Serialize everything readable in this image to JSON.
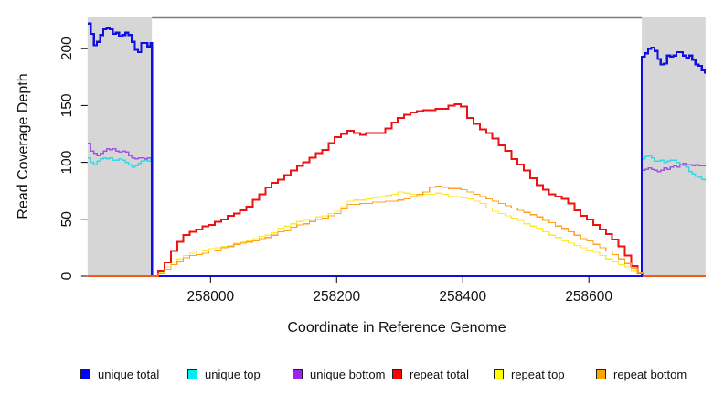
{
  "figure": {
    "background": "#ffffff",
    "plot_background": "#ffffff"
  },
  "chart_data": {
    "type": "line",
    "title": "",
    "xlabel": "Coordinate in Reference Genome",
    "ylabel": "Read Coverage Depth",
    "x_ticks": [
      258000,
      258200,
      258400,
      258600
    ],
    "y_ticks": [
      0,
      50,
      100,
      150,
      200
    ],
    "x_range": [
      257805,
      258785
    ],
    "y_range": [
      0,
      227.5
    ],
    "grid": false,
    "legend_position": "bottom-horizontal",
    "shaded_color": "#d6d6d6",
    "shaded_regions": [
      {
        "from": 257805,
        "to": 257907
      },
      {
        "from": 258684,
        "to": 258785
      }
    ],
    "top_boundary_line": {
      "from": 257907,
      "to": 258684,
      "color": "#7f7f7f"
    },
    "series": [
      {
        "name": "unique top",
        "color": "#38d7e8",
        "line_width": 1.5,
        "segments": [
          {
            "x0": 257805,
            "dx": 5,
            "v": [
              104,
              100,
              98,
              101,
              103,
              104,
              103,
              104,
              102,
              102,
              103,
              102,
              100,
              98,
              96,
              97,
              99,
              101,
              102,
              101,
              103
            ]
          },
          {
            "x0": 257907,
            "dx": 777,
            "v": [
              0,
              0
            ]
          },
          {
            "x0": 258684,
            "dx": 5,
            "v": [
              103,
              105,
              106,
              104,
              101,
              101,
              102,
              100,
              101,
              102,
              102,
              100,
              98,
              97,
              96,
              92,
              90,
              88,
              87,
              85,
              84
            ]
          }
        ]
      },
      {
        "name": "unique bottom",
        "color": "#a055e0",
        "line_width": 1.5,
        "segments": [
          {
            "x0": 257805,
            "dx": 5,
            "v": [
              117,
              110,
              108,
              106,
              108,
              110,
              112,
              111,
              112,
              110,
              109,
              110,
              109,
              106,
              104,
              103,
              104,
              104,
              103,
              104,
              104
            ]
          },
          {
            "x0": 257907,
            "dx": 777,
            "v": [
              0,
              0
            ]
          },
          {
            "x0": 258684,
            "dx": 5,
            "v": [
              93,
              94,
              95,
              94,
              93,
              92,
              93,
              95,
              94,
              96,
              97,
              96,
              98,
              99,
              98,
              98,
              97,
              98,
              97,
              97,
              98
            ]
          }
        ]
      },
      {
        "name": "unique total",
        "color": "#0f0fdf",
        "line_width": 2.2,
        "segments": [
          {
            "x0": 257805,
            "dx": 5,
            "v": [
              222,
              213,
              203,
              206,
              212,
              217,
              218,
              217,
              213,
              214,
              211,
              212,
              214,
              212,
              206,
              199,
              197,
              205,
              205,
              202,
              205
            ]
          },
          {
            "x0": 257907,
            "dx": 777,
            "v": [
              0,
              0
            ]
          },
          {
            "x0": 258684,
            "dx": 5,
            "v": [
              193,
              196,
              200,
              201,
              198,
              191,
              186,
              187,
              194,
              193,
              194,
              197,
              197,
              194,
              192,
              194,
              190,
              186,
              185,
              181,
              178
            ]
          }
        ]
      },
      {
        "name": "repeat top",
        "color": "#ffe930",
        "line_width": 1.2,
        "segments": [
          {
            "x0": 257805,
            "dx": 102,
            "v": [
              0,
              0
            ]
          },
          {
            "x0": 257907,
            "dx": 10,
            "v": [
              0,
              3,
              8,
              12,
              15,
              18,
              20,
              22,
              23,
              24,
              25,
              26,
              27,
              29,
              30,
              31,
              33,
              35,
              36,
              38,
              42,
              44,
              46,
              48,
              49,
              50,
              52,
              53,
              55,
              57,
              61,
              66,
              67,
              67,
              68,
              69,
              70,
              71,
              72,
              74,
              73,
              72,
              71,
              72,
              72,
              73,
              72,
              70,
              70,
              69,
              68,
              66,
              64,
              60,
              57,
              55,
              53,
              51,
              49,
              46,
              44,
              42,
              39,
              36,
              34,
              31,
              29,
              27,
              25,
              23,
              21,
              18,
              15,
              13,
              10,
              8,
              5,
              2,
              0
            ]
          },
          {
            "x0": 258687,
            "dx": 98,
            "v": [
              0,
              0
            ]
          }
        ]
      },
      {
        "name": "repeat total",
        "color": "#ee1212",
        "line_width": 2.0,
        "segments": [
          {
            "x0": 257805,
            "dx": 102,
            "v": [
              0,
              0
            ]
          },
          {
            "x0": 257907,
            "dx": 10,
            "v": [
              0,
              5,
              12,
              22,
              30,
              36,
              39,
              41,
              44,
              45,
              48,
              50,
              53,
              55,
              58,
              61,
              67,
              72,
              78,
              82,
              85,
              89,
              93,
              97,
              100,
              104,
              108,
              111,
              117,
              122,
              125,
              128,
              126,
              124,
              126,
              126,
              126,
              130,
              135,
              139,
              142,
              144,
              145,
              146,
              146,
              147,
              147,
              150,
              151,
              149,
              139,
              134,
              129,
              126,
              121,
              115,
              110,
              103,
              98,
              93,
              86,
              80,
              76,
              72,
              70,
              68,
              64,
              58,
              53,
              50,
              45,
              41,
              37,
              32,
              26,
              18,
              9,
              3,
              0
            ]
          },
          {
            "x0": 258687,
            "dx": 98,
            "v": [
              0,
              0
            ]
          }
        ]
      },
      {
        "name": "repeat bottom",
        "color": "#ffa01e",
        "line_width": 1.2,
        "segments": [
          {
            "x0": 257805,
            "dx": 102,
            "v": [
              0,
              0
            ]
          },
          {
            "x0": 257907,
            "dx": 10,
            "v": [
              0,
              2,
              6,
              10,
              13,
              16,
              18,
              19,
              20,
              22,
              23,
              25,
              26,
              28,
              29,
              30,
              31,
              33,
              34,
              36,
              39,
              40,
              43,
              45,
              46,
              48,
              50,
              51,
              53,
              55,
              59,
              63,
              63,
              64,
              64,
              65,
              65,
              66,
              66,
              67,
              68,
              70,
              72,
              74,
              78,
              79,
              78,
              77,
              77,
              76,
              74,
              72,
              70,
              68,
              66,
              64,
              62,
              60,
              58,
              56,
              54,
              52,
              49,
              47,
              44,
              42,
              39,
              36,
              33,
              31,
              28,
              25,
              22,
              19,
              15,
              11,
              7,
              3,
              0
            ]
          },
          {
            "x0": 258687,
            "dx": 98,
            "v": [
              0,
              0
            ]
          }
        ]
      }
    ],
    "legend": [
      {
        "label": "unique total",
        "color": "#0000ff"
      },
      {
        "label": "unique top",
        "color": "#00eeee"
      },
      {
        "label": "unique bottom",
        "color": "#a020f0"
      },
      {
        "label": "repeat total",
        "color": "#ff0000"
      },
      {
        "label": "repeat top",
        "color": "#ffff00"
      },
      {
        "label": "repeat bottom",
        "color": "#ffa500"
      }
    ]
  },
  "axes": {
    "x_title": "Coordinate in Reference Genome",
    "y_title": "Read Coverage Depth"
  }
}
